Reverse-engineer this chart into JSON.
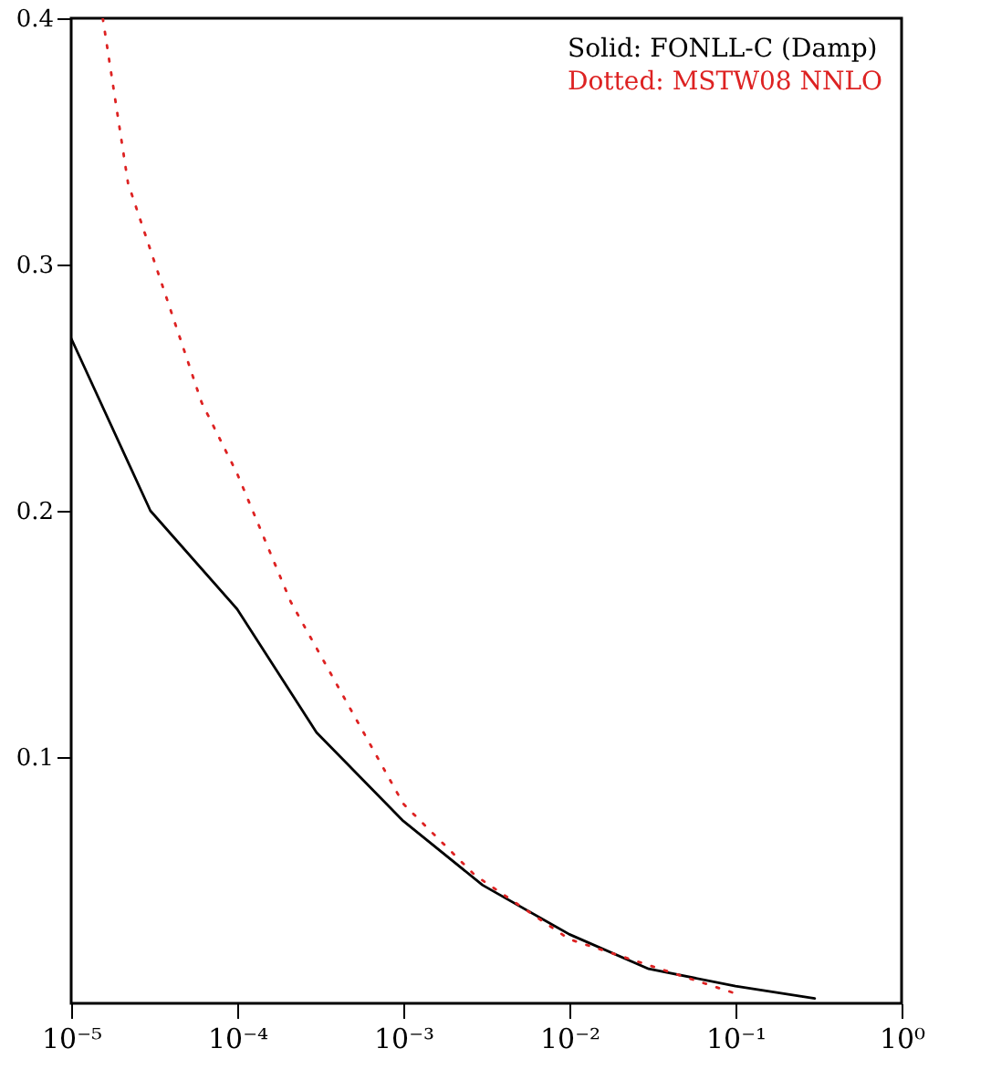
{
  "chart_data": {
    "type": "line",
    "log": "x",
    "xlim": [
      1e-05,
      1
    ],
    "ylim": [
      0,
      0.4
    ],
    "xticks": [
      {
        "value": 1e-05,
        "label": "10⁻⁵"
      },
      {
        "value": 0.0001,
        "label": "10⁻⁴"
      },
      {
        "value": 0.001,
        "label": "10⁻³"
      },
      {
        "value": 0.01,
        "label": "10⁻²"
      },
      {
        "value": 0.1,
        "label": "10⁻¹"
      },
      {
        "value": 1,
        "label": "10⁰"
      }
    ],
    "yticks": [
      0.1,
      0.2,
      0.3,
      0.4
    ],
    "grid": false,
    "legend": "top right",
    "series": [
      {
        "name": "Solid: FONLL-C (Damp)",
        "color": "#000000",
        "line_style": "solid",
        "x": [
          1e-05,
          3e-05,
          0.0001,
          0.0003,
          0.001,
          0.003,
          0.01,
          0.03,
          0.1,
          0.3
        ],
        "values": [
          0.27,
          0.2,
          0.16,
          0.11,
          0.074,
          0.048,
          0.028,
          0.014,
          0.007,
          0.002
        ]
      },
      {
        "name": "Dotted: MSTW08 NNLO",
        "color": "#dd2222",
        "line_style": "dotted",
        "x": [
          1.55e-05,
          2.2e-05,
          6.1e-05,
          0.0001,
          0.00021,
          0.001,
          0.0027,
          0.01,
          0.1
        ],
        "values": [
          0.4,
          0.333,
          0.244,
          0.215,
          0.163,
          0.081,
          0.052,
          0.026,
          0.004
        ]
      }
    ]
  }
}
